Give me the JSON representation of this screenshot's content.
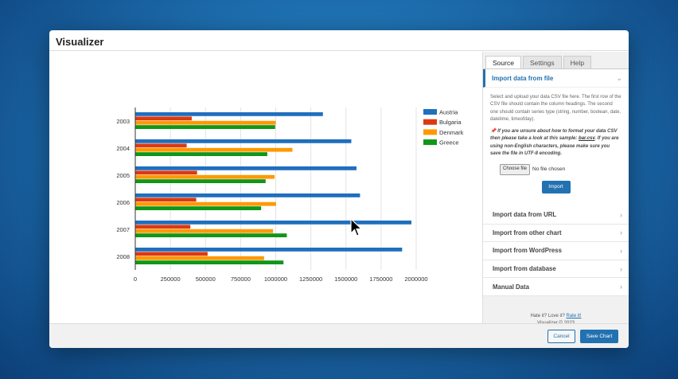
{
  "window": {
    "title": "Visualizer"
  },
  "sidebar": {
    "tabs": [
      {
        "label": "Source",
        "active": true
      },
      {
        "label": "Settings"
      },
      {
        "label": "Help"
      }
    ],
    "import_file": {
      "title": "Import data from file",
      "description": "Select and upload your data CSV file here. The first row of the CSV file should contain the column headings. The second one should contain series type (string, number, boolean, date, datetime, timeofday).",
      "note_prefix": "If you are unsure about how to format your data CSV then please take a look at this sample:",
      "sample_link": "bar.csv",
      "note_suffix": ". If you are using non-English characters, please make sure you save the file in UTF-8 encoding.",
      "choose_file": "Choose file",
      "no_file": "No file chosen",
      "import_button": "Import"
    },
    "sections": [
      {
        "label": "Import data from URL"
      },
      {
        "label": "Import from other chart"
      },
      {
        "label": "Import from WordPress"
      },
      {
        "label": "Import from database"
      },
      {
        "label": "Manual Data"
      }
    ],
    "credits": {
      "prefix": "Hate it? Love it?",
      "rate_link": "Rate it!",
      "copyright": "Visualizer © 2023"
    }
  },
  "footer": {
    "cancel": "Cancel",
    "save": "Save Chart"
  },
  "chart_data": {
    "type": "bar",
    "orientation": "horizontal",
    "categories": [
      "2003",
      "2004",
      "2005",
      "2006",
      "2007",
      "2008"
    ],
    "series": [
      {
        "name": "Austria",
        "color": "#1f6fbf",
        "values": [
          1336000,
          1538000,
          1575000,
          1600000,
          1966000,
          1900000
        ]
      },
      {
        "name": "Bulgaria",
        "color": "#dc3912",
        "values": [
          402000,
          366000,
          440000,
          434000,
          392000,
          515000
        ]
      },
      {
        "name": "Denmark",
        "color": "#ff9900",
        "values": [
          1000000,
          1119000,
          992000,
          1002000,
          981000,
          917000
        ]
      },
      {
        "name": "Greece",
        "color": "#109618",
        "values": [
          996000,
          940000,
          928000,
          896000,
          1079000,
          1055000
        ]
      }
    ],
    "xlim": [
      0,
      2000000
    ],
    "xticks": [
      "0",
      "250000",
      "500000",
      "750000",
      "1000000",
      "1250000",
      "1500000",
      "1750000",
      "2000000"
    ],
    "grid": true,
    "legend": "right"
  }
}
